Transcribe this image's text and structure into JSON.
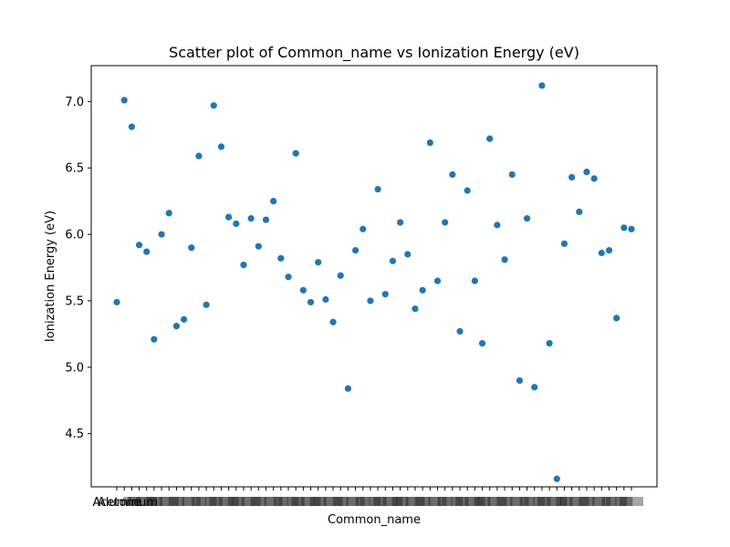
{
  "chart_data": {
    "type": "scatter",
    "title": "Scatter plot of Common_name vs Ionization Energy (eV)",
    "xlabel": "Common_name",
    "ylabel": "Ionization Energy (eV)",
    "ylim": [
      4.1,
      7.27
    ],
    "yticks": [
      4.5,
      5.0,
      5.5,
      6.0,
      6.5,
      7.0
    ],
    "ytick_labels": [
      "4.5",
      "5.0",
      "5.5",
      "6.0",
      "6.5",
      "7.0"
    ],
    "grid": false,
    "legend": "none",
    "color": "#1f77b4",
    "x_edge_labels": [
      "Acetone",
      "Aluminum"
    ],
    "y": [
      5.49,
      7.01,
      6.81,
      5.92,
      5.87,
      5.21,
      6.0,
      6.16,
      5.31,
      5.36,
      5.9,
      6.59,
      5.47,
      6.97,
      6.66,
      6.13,
      6.08,
      5.77,
      6.12,
      5.91,
      6.11,
      6.25,
      5.82,
      5.68,
      6.61,
      5.58,
      5.49,
      5.79,
      5.51,
      5.34,
      5.69,
      4.84,
      5.88,
      6.04,
      5.5,
      6.34,
      5.55,
      5.8,
      6.09,
      5.85,
      5.44,
      5.58,
      6.69,
      5.65,
      6.09,
      6.45,
      5.27,
      6.33,
      5.65,
      5.18,
      6.72,
      6.07,
      5.81,
      6.45,
      4.9,
      6.12,
      4.85,
      7.12,
      5.18,
      4.16,
      5.93,
      6.43,
      6.17,
      6.47,
      6.42,
      5.86,
      5.88,
      5.37,
      6.05,
      6.04
    ]
  }
}
